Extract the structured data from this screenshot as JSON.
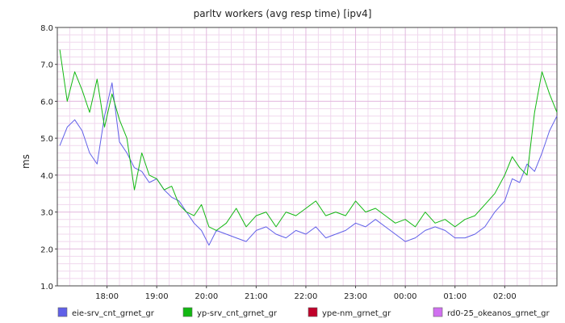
{
  "chart_data": {
    "type": "line",
    "title": "parltv workers (avg resp time) [ipv4]",
    "xlabel": "",
    "ylabel": "ms",
    "ylim": [
      1.0,
      8.0
    ],
    "ytick_values": [
      1.0,
      2.0,
      3.0,
      4.0,
      5.0,
      6.0,
      7.0,
      8.0
    ],
    "ytick_labels": [
      "1.0",
      "2.0",
      "3.0",
      "4.0",
      "5.0",
      "6.0",
      "7.0",
      "8.0"
    ],
    "x_range_hours": [
      17.0,
      27.05
    ],
    "xtick_values": [
      18,
      19,
      20,
      21,
      22,
      23,
      24,
      25,
      26
    ],
    "xtick_labels": [
      "18:00",
      "19:00",
      "20:00",
      "21:00",
      "22:00",
      "23:00",
      "00:00",
      "01:00",
      "02:00"
    ],
    "grid": true,
    "legend_position": "bottom",
    "series": [
      {
        "name": "eie-srv_cnt_grnet_gr",
        "color": "#6060e8",
        "x": [
          17.05,
          17.2,
          17.35,
          17.5,
          17.65,
          17.8,
          17.95,
          18.1,
          18.25,
          18.4,
          18.55,
          18.7,
          18.85,
          19.0,
          19.15,
          19.3,
          19.45,
          19.6,
          19.75,
          19.9,
          20.05,
          20.2,
          20.4,
          20.6,
          20.8,
          21.0,
          21.2,
          21.4,
          21.6,
          21.8,
          22.0,
          22.2,
          22.4,
          22.6,
          22.8,
          23.0,
          23.2,
          23.4,
          23.6,
          23.8,
          24.0,
          24.2,
          24.4,
          24.6,
          24.8,
          25.0,
          25.2,
          25.4,
          25.6,
          25.8,
          26.0,
          26.15,
          26.3,
          26.45,
          26.6,
          26.75,
          26.9,
          27.05
        ],
        "values": [
          4.8,
          5.3,
          5.5,
          5.2,
          4.6,
          4.3,
          5.6,
          6.5,
          4.9,
          4.6,
          4.2,
          4.1,
          3.8,
          3.9,
          3.6,
          3.4,
          3.3,
          3.0,
          2.7,
          2.5,
          2.1,
          2.5,
          2.4,
          2.3,
          2.2,
          2.5,
          2.6,
          2.4,
          2.3,
          2.5,
          2.4,
          2.6,
          2.3,
          2.4,
          2.5,
          2.7,
          2.6,
          2.8,
          2.6,
          2.4,
          2.2,
          2.3,
          2.5,
          2.6,
          2.5,
          2.3,
          2.3,
          2.4,
          2.6,
          3.0,
          3.3,
          3.9,
          3.8,
          4.3,
          4.1,
          4.6,
          5.2,
          5.6
        ]
      },
      {
        "name": "yp-srv_cnt_grnet_gr",
        "color": "#12b812",
        "x": [
          17.05,
          17.2,
          17.35,
          17.5,
          17.65,
          17.8,
          17.95,
          18.1,
          18.25,
          18.4,
          18.55,
          18.7,
          18.85,
          19.0,
          19.15,
          19.3,
          19.45,
          19.6,
          19.75,
          19.9,
          20.05,
          20.2,
          20.4,
          20.6,
          20.8,
          21.0,
          21.2,
          21.4,
          21.6,
          21.8,
          22.0,
          22.2,
          22.4,
          22.6,
          22.8,
          23.0,
          23.2,
          23.4,
          23.6,
          23.8,
          24.0,
          24.2,
          24.4,
          24.6,
          24.8,
          25.0,
          25.2,
          25.4,
          25.6,
          25.8,
          26.0,
          26.15,
          26.3,
          26.45,
          26.6,
          26.75,
          26.9,
          27.05
        ],
        "values": [
          7.4,
          6.0,
          6.8,
          6.3,
          5.7,
          6.6,
          5.3,
          6.2,
          5.5,
          5.0,
          3.6,
          4.6,
          4.0,
          3.9,
          3.6,
          3.7,
          3.2,
          3.0,
          2.9,
          3.2,
          2.6,
          2.5,
          2.7,
          3.1,
          2.6,
          2.9,
          3.0,
          2.6,
          3.0,
          2.9,
          3.1,
          3.3,
          2.9,
          3.0,
          2.9,
          3.3,
          3.0,
          3.1,
          2.9,
          2.7,
          2.8,
          2.6,
          3.0,
          2.7,
          2.8,
          2.6,
          2.8,
          2.9,
          3.2,
          3.5,
          4.0,
          4.5,
          4.2,
          4.0,
          5.7,
          6.8,
          6.2,
          5.7
        ]
      },
      {
        "name": "ype-nm_grnet_gr",
        "color": "#c0002a",
        "x": [],
        "values": []
      },
      {
        "name": "rd0-25_okeanos_grnet_gr",
        "color": "#d070f0",
        "x": [],
        "values": []
      }
    ]
  }
}
